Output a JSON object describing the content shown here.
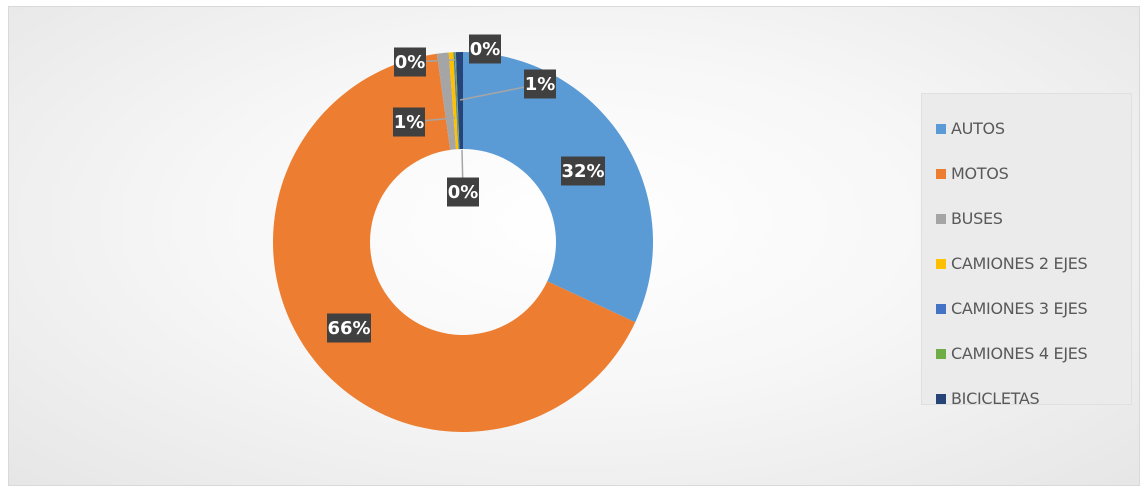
{
  "chart_data": {
    "type": "pie",
    "variant": "doughnut",
    "title": "",
    "series": [
      {
        "name": "AUTOS",
        "value": 32,
        "label": "32%",
        "color": "#5b9bd5"
      },
      {
        "name": "MOTOS",
        "value": 66,
        "label": "66%",
        "color": "#ed7d31"
      },
      {
        "name": "BUSES",
        "value": 1,
        "label": "1%",
        "color": "#a5a5a5"
      },
      {
        "name": "CAMIONES 2 EJES",
        "value": 0.4,
        "label": "0%",
        "color": "#ffc000"
      },
      {
        "name": "CAMIONES 3 EJES",
        "value": 0.1,
        "label": "0%",
        "color": "#4472c4"
      },
      {
        "name": "CAMIONES 4 EJES",
        "value": 0.1,
        "label": "0%",
        "color": "#70ad47"
      },
      {
        "name": "BICICLETAS",
        "value": 0.6,
        "label": "1%",
        "color": "#264478"
      }
    ],
    "legend": "right",
    "data_label_style": "dark boxes with white bold text"
  }
}
